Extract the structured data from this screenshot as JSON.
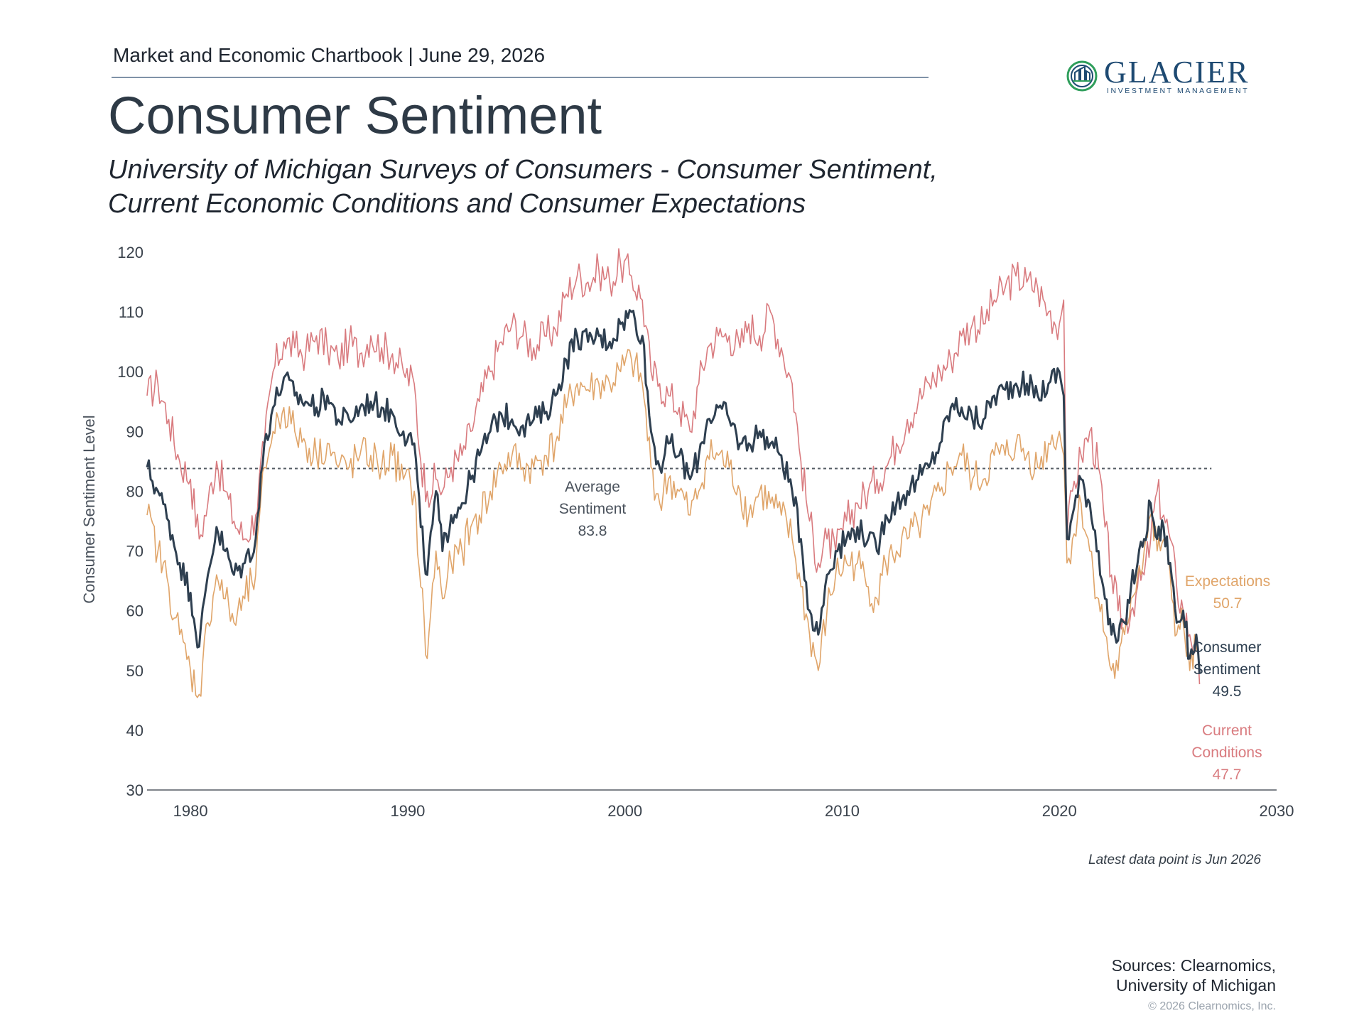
{
  "header": {
    "text": "Market and Economic Chartbook | June 29, 2026"
  },
  "logo": {
    "name": "GLACIER",
    "tagline": "INVESTMENT MANAGEMENT",
    "accent_color": "#2f9e5b",
    "brand_color": "#1e4a72"
  },
  "title": "Consumer Sentiment",
  "subtitle": {
    "line1": "University of Michigan Surveys of Consumers - Consumer Sentiment,",
    "line2": "Current Economic Conditions and Consumer Expectations"
  },
  "chart_data": {
    "type": "line",
    "ylabel": "Consumer Sentiment Level",
    "xlabel": "",
    "ylim": [
      30,
      120
    ],
    "xlim": [
      1978,
      2030
    ],
    "yticks": [
      30,
      40,
      50,
      60,
      70,
      80,
      90,
      100,
      110,
      120
    ],
    "xticks": [
      1980,
      1990,
      2000,
      2010,
      2020,
      2030
    ],
    "grid": false,
    "average": {
      "value": 83.8,
      "label_line1": "Average",
      "label_line2": "Sentiment",
      "label_value": "83.8"
    },
    "series": [
      {
        "name": "Current Conditions",
        "color": "#d97b7f",
        "label_line1": "Current",
        "label_line2": "Conditions",
        "latest": "47.7",
        "x": [
          1978.0,
          1978.5,
          1979.0,
          1979.5,
          1980.0,
          1980.4,
          1980.8,
          1981.2,
          1981.6,
          1982.0,
          1982.5,
          1983.0,
          1983.4,
          1983.8,
          1984.3,
          1984.8,
          1985.3,
          1985.8,
          1986.3,
          1986.8,
          1987.3,
          1987.8,
          1988.3,
          1988.8,
          1989.3,
          1989.8,
          1990.3,
          1990.6,
          1990.9,
          1991.3,
          1991.6,
          1992.0,
          1992.5,
          1992.9,
          1993.3,
          1993.8,
          1994.3,
          1994.8,
          1995.3,
          1995.8,
          1996.3,
          1996.8,
          1997.3,
          1997.8,
          1998.3,
          1998.8,
          1999.3,
          1999.8,
          2000.3,
          2000.8,
          2001.2,
          2001.6,
          2002.0,
          2002.5,
          2003.0,
          2003.4,
          2003.8,
          2004.3,
          2004.8,
          2005.3,
          2005.7,
          2006.2,
          2006.7,
          2007.2,
          2007.7,
          2008.1,
          2008.5,
          2008.9,
          2009.3,
          2009.7,
          2010.2,
          2010.7,
          2011.2,
          2011.6,
          2012.0,
          2012.5,
          2013.0,
          2013.5,
          2014.0,
          2014.5,
          2015.0,
          2015.5,
          2016.0,
          2016.5,
          2017.0,
          2017.5,
          2018.0,
          2018.5,
          2019.0,
          2019.5,
          2020.0,
          2020.2,
          2020.35,
          2020.6,
          2021.0,
          2021.4,
          2021.8,
          2022.1,
          2022.4,
          2022.7,
          2023.0,
          2023.3,
          2023.6,
          2023.9,
          2024.2,
          2024.5,
          2024.8,
          2025.1,
          2025.4,
          2025.7,
          2026.0,
          2026.3,
          2026.45
        ],
        "y": [
          96,
          98,
          92,
          85,
          82,
          72,
          78,
          85,
          80,
          75,
          72,
          76,
          88,
          100,
          105,
          104,
          103,
          106,
          104,
          102,
          105,
          103,
          106,
          104,
          103,
          100,
          98,
          85,
          80,
          82,
          80,
          84,
          86,
          90,
          95,
          100,
          105,
          108,
          106,
          104,
          106,
          107,
          113,
          116,
          115,
          117,
          115,
          118,
          116,
          112,
          100,
          98,
          96,
          94,
          90,
          98,
          104,
          106,
          106,
          104,
          108,
          106,
          110,
          104,
          98,
          85,
          75,
          68,
          72,
          70,
          75,
          78,
          80,
          82,
          84,
          88,
          92,
          95,
          98,
          100,
          102,
          106,
          108,
          108,
          112,
          114,
          116,
          115,
          114,
          110,
          108,
          112,
          72,
          80,
          86,
          90,
          84,
          74,
          66,
          60,
          58,
          60,
          64,
          66,
          72,
          80,
          76,
          72,
          64,
          60,
          56,
          54,
          47.7
        ]
      },
      {
        "name": "Consumer Sentiment",
        "color": "#2e3f50",
        "label_line1": "Consumer",
        "label_line2": "Sentiment",
        "latest": "49.5",
        "x": [
          1978.0,
          1978.5,
          1979.0,
          1979.5,
          1980.0,
          1980.4,
          1980.8,
          1981.2,
          1981.6,
          1982.0,
          1982.5,
          1983.0,
          1983.4,
          1983.8,
          1984.3,
          1984.8,
          1985.3,
          1985.8,
          1986.3,
          1986.8,
          1987.3,
          1987.8,
          1988.3,
          1988.8,
          1989.3,
          1989.8,
          1990.3,
          1990.6,
          1990.9,
          1991.3,
          1991.6,
          1992.0,
          1992.5,
          1992.9,
          1993.3,
          1993.8,
          1994.3,
          1994.8,
          1995.3,
          1995.8,
          1996.3,
          1996.8,
          1997.3,
          1997.8,
          1998.3,
          1998.8,
          1999.3,
          1999.8,
          2000.3,
          2000.8,
          2001.2,
          2001.6,
          2002.0,
          2002.5,
          2003.0,
          2003.4,
          2003.8,
          2004.3,
          2004.8,
          2005.3,
          2005.7,
          2006.2,
          2006.7,
          2007.2,
          2007.7,
          2008.1,
          2008.5,
          2008.9,
          2009.3,
          2009.7,
          2010.2,
          2010.7,
          2011.2,
          2011.6,
          2012.0,
          2012.5,
          2013.0,
          2013.5,
          2014.0,
          2014.5,
          2015.0,
          2015.5,
          2016.0,
          2016.5,
          2017.0,
          2017.5,
          2018.0,
          2018.5,
          2019.0,
          2019.5,
          2020.0,
          2020.2,
          2020.35,
          2020.6,
          2021.0,
          2021.4,
          2021.8,
          2022.1,
          2022.4,
          2022.7,
          2023.0,
          2023.3,
          2023.6,
          2023.9,
          2024.2,
          2024.5,
          2024.8,
          2025.1,
          2025.4,
          2025.7,
          2026.0,
          2026.3,
          2026.45
        ],
        "y": [
          84,
          80,
          75,
          68,
          63,
          54,
          66,
          74,
          70,
          66,
          68,
          72,
          88,
          94,
          99,
          96,
          95,
          94,
          96,
          92,
          92,
          94,
          95,
          94,
          93,
          90,
          88,
          74,
          66,
          80,
          70,
          76,
          78,
          82,
          86,
          90,
          93,
          92,
          91,
          92,
          93,
          96,
          102,
          106,
          105,
          106,
          105,
          108,
          110,
          106,
          90,
          84,
          88,
          86,
          82,
          86,
          92,
          94,
          92,
          88,
          88,
          90,
          88,
          86,
          80,
          72,
          60,
          56,
          66,
          70,
          72,
          74,
          72,
          70,
          76,
          78,
          80,
          82,
          84,
          88,
          94,
          94,
          92,
          92,
          96,
          97,
          98,
          98,
          96,
          98,
          100,
          96,
          72,
          76,
          82,
          78,
          70,
          62,
          56,
          55,
          58,
          64,
          68,
          72,
          78,
          72,
          74,
          68,
          58,
          60,
          52,
          56,
          49.5
        ]
      },
      {
        "name": "Expectations",
        "color": "#e0a56a",
        "label_line1": "Expectations",
        "label_line2": "",
        "latest": "50.7",
        "x": [
          1978.0,
          1978.5,
          1979.0,
          1979.5,
          1980.0,
          1980.4,
          1980.8,
          1981.2,
          1981.6,
          1982.0,
          1982.5,
          1983.0,
          1983.4,
          1983.8,
          1984.3,
          1984.8,
          1985.3,
          1985.8,
          1986.3,
          1986.8,
          1987.3,
          1987.8,
          1988.3,
          1988.8,
          1989.3,
          1989.8,
          1990.3,
          1990.6,
          1990.9,
          1991.3,
          1991.6,
          1992.0,
          1992.5,
          1992.9,
          1993.3,
          1993.8,
          1994.3,
          1994.8,
          1995.3,
          1995.8,
          1996.3,
          1996.8,
          1997.3,
          1997.8,
          1998.3,
          1998.8,
          1999.3,
          1999.8,
          2000.3,
          2000.8,
          2001.2,
          2001.6,
          2002.0,
          2002.5,
          2003.0,
          2003.4,
          2003.8,
          2004.3,
          2004.8,
          2005.3,
          2005.7,
          2006.2,
          2006.7,
          2007.2,
          2007.7,
          2008.1,
          2008.5,
          2008.9,
          2009.3,
          2009.7,
          2010.2,
          2010.7,
          2011.2,
          2011.6,
          2012.0,
          2012.5,
          2013.0,
          2013.5,
          2014.0,
          2014.5,
          2015.0,
          2015.5,
          2016.0,
          2016.5,
          2017.0,
          2017.5,
          2018.0,
          2018.5,
          2019.0,
          2019.5,
          2020.0,
          2020.2,
          2020.35,
          2020.6,
          2021.0,
          2021.4,
          2021.8,
          2022.1,
          2022.4,
          2022.7,
          2023.0,
          2023.3,
          2023.6,
          2023.9,
          2024.2,
          2024.5,
          2024.8,
          2025.1,
          2025.4,
          2025.7,
          2026.0,
          2026.3,
          2026.45
        ],
        "y": [
          76,
          70,
          64,
          56,
          50,
          46,
          58,
          66,
          62,
          58,
          62,
          66,
          84,
          90,
          94,
          90,
          88,
          86,
          88,
          84,
          84,
          86,
          86,
          84,
          86,
          82,
          80,
          64,
          52,
          70,
          62,
          68,
          70,
          74,
          76,
          80,
          84,
          86,
          84,
          84,
          86,
          88,
          94,
          98,
          97,
          98,
          98,
          100,
          102,
          98,
          84,
          78,
          82,
          80,
          76,
          80,
          86,
          86,
          84,
          80,
          76,
          80,
          78,
          76,
          72,
          64,
          56,
          50,
          60,
          66,
          68,
          68,
          64,
          62,
          68,
          70,
          72,
          74,
          76,
          80,
          84,
          86,
          82,
          82,
          86,
          86,
          88,
          86,
          84,
          88,
          90,
          86,
          68,
          72,
          78,
          70,
          62,
          56,
          50,
          50,
          56,
          62,
          66,
          70,
          76,
          70,
          72,
          66,
          56,
          58,
          50,
          54,
          50.7
        ]
      }
    ]
  },
  "footnote": "Latest data point is Jun 2026",
  "sources": {
    "line1": "Sources: Clearnomics,",
    "line2": "University of Michigan"
  },
  "copyright": "© 2026 Clearnomics, Inc."
}
